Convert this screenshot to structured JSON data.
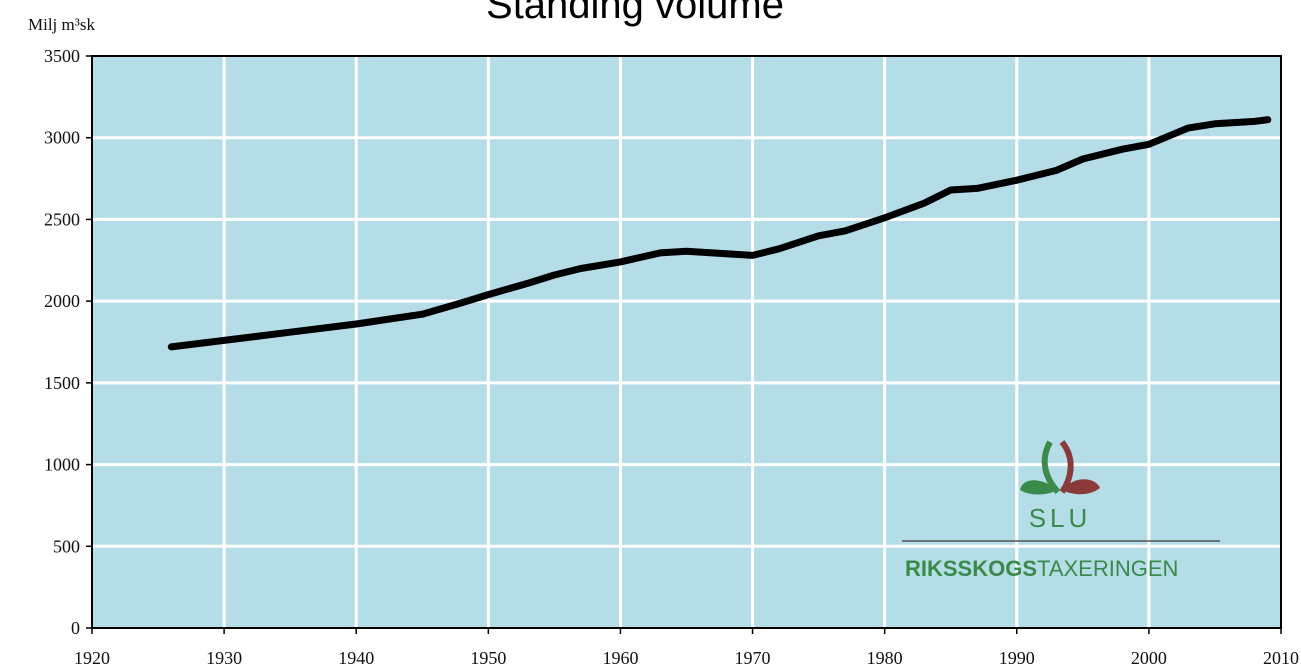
{
  "chart_data": {
    "type": "line",
    "title": "Standing volume",
    "ylabel": "Milj m³sk",
    "xlabel": "",
    "xlim": [
      1920,
      2010
    ],
    "ylim": [
      0,
      3500
    ],
    "x_ticks": [
      1920,
      1930,
      1940,
      1950,
      1960,
      1970,
      1980,
      1990,
      2000,
      2010
    ],
    "y_ticks": [
      0,
      500,
      1000,
      1500,
      2000,
      2500,
      3000,
      3500
    ],
    "grid": true,
    "legend": "none",
    "series": [
      {
        "x": [
          1926,
          1930,
          1935,
          1940,
          1945,
          1948,
          1950,
          1953,
          1955,
          1957,
          1960,
          1963,
          1965,
          1968,
          1970,
          1972,
          1975,
          1977,
          1980,
          1983,
          1985,
          1987,
          1990,
          1993,
          1995,
          1998,
          2000,
          2003,
          2005,
          2008,
          2009
        ],
        "y": [
          1720,
          1760,
          1810,
          1860,
          1920,
          1990,
          2040,
          2110,
          2160,
          2200,
          2240,
          2295,
          2305,
          2290,
          2280,
          2320,
          2400,
          2430,
          2510,
          2600,
          2680,
          2690,
          2740,
          2800,
          2870,
          2930,
          2960,
          3060,
          3085,
          3100,
          3110
        ]
      }
    ]
  },
  "colors": {
    "plot_background": "#b5dde8",
    "grid": "#ffffff",
    "line": "#000000",
    "axis": "#000000",
    "logo_green": "#3a8a4a",
    "logo_red": "#8b3a3a"
  },
  "logo": {
    "org": "SLU",
    "name_bold": "RIKSSKOGS",
    "name_regular": "TAXERINGEN"
  }
}
